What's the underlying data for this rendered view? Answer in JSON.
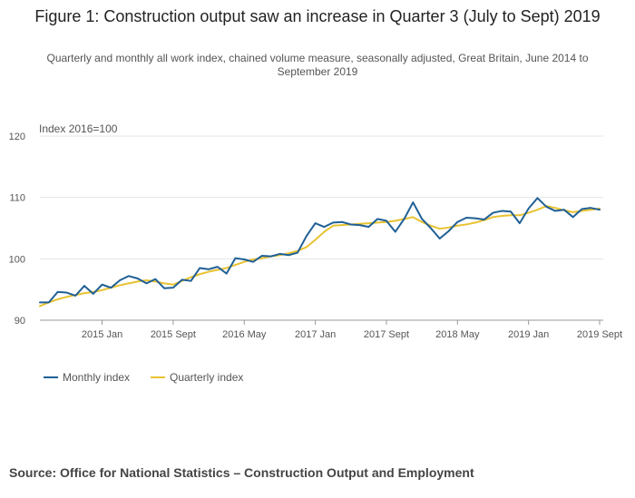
{
  "title": "Figure 1: Construction output saw an increase in Quarter 3 (July to Sept) 2019",
  "subtitle": "Quarterly and monthly all work index, chained volume measure, seasonally adjusted, Great Britain, June 2014 to September 2019",
  "source": "Source: Office for National Statistics – Construction Output and Employment",
  "chart_data": {
    "type": "line",
    "ylabel": "Index 2016=100",
    "ylim": [
      90,
      120
    ],
    "yticks": [
      90,
      100,
      110,
      120
    ],
    "grid": true,
    "legend_position": "bottom-left",
    "x_start": "2014 Jun",
    "x_end": "2019 Sept",
    "xticks": [
      {
        "index": 7,
        "label": "2015 Jan"
      },
      {
        "index": 15,
        "label": "2015 Sept"
      },
      {
        "index": 23,
        "label": "2016 May"
      },
      {
        "index": 31,
        "label": "2017 Jan"
      },
      {
        "index": 39,
        "label": "2017 Sept"
      },
      {
        "index": 47,
        "label": "2018 May"
      },
      {
        "index": 55,
        "label": "2019 Jan"
      },
      {
        "index": 63,
        "label": "2019 Sept"
      }
    ],
    "series": [
      {
        "name": "Monthly index",
        "color": "#206095",
        "values": [
          92.9,
          92.9,
          94.6,
          94.5,
          94.0,
          95.6,
          94.3,
          95.8,
          95.3,
          96.5,
          97.2,
          96.8,
          96.0,
          96.7,
          95.2,
          95.3,
          96.6,
          96.4,
          98.5,
          98.3,
          98.7,
          97.6,
          100.1,
          99.9,
          99.5,
          100.5,
          100.4,
          100.8,
          100.6,
          101.0,
          103.7,
          105.8,
          105.2,
          105.9,
          106.0,
          105.6,
          105.5,
          105.2,
          106.5,
          106.2,
          104.4,
          106.5,
          109.2,
          106.5,
          105.0,
          103.3,
          104.5,
          106.0,
          106.7,
          106.6,
          106.4,
          107.5,
          107.8,
          107.7,
          105.8,
          108.2,
          109.9,
          108.5,
          107.8,
          108.0,
          106.8,
          108.1,
          108.3,
          108.0
        ]
      },
      {
        "name": "Quarterly index",
        "color": "#e8c231",
        "values": [
          92.3,
          92.9,
          93.4,
          93.8,
          94.1,
          94.4,
          94.6,
          94.9,
          95.3,
          95.7,
          96.0,
          96.3,
          96.5,
          96.3,
          96.0,
          95.8,
          96.4,
          97.0,
          97.5,
          97.9,
          98.2,
          98.5,
          99.0,
          99.5,
          99.9,
          100.1,
          100.4,
          100.6,
          100.9,
          101.3,
          101.9,
          103.1,
          104.4,
          105.4,
          105.5,
          105.6,
          105.7,
          105.8,
          105.9,
          106.0,
          106.2,
          106.5,
          106.8,
          106.0,
          105.4,
          104.9,
          105.1,
          105.4,
          105.6,
          105.9,
          106.3,
          106.8,
          107.0,
          107.1,
          107.1,
          107.5,
          108.0,
          108.6,
          108.3,
          107.9,
          107.6,
          107.8,
          108.0,
          108.2
        ]
      }
    ]
  }
}
